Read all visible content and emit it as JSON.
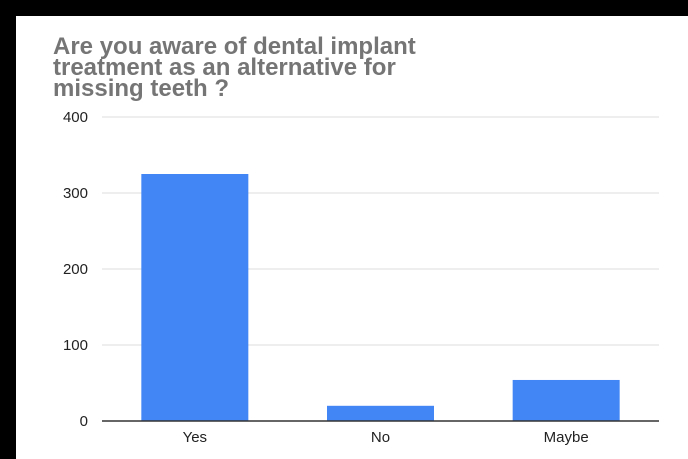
{
  "chart_data": {
    "type": "bar",
    "title": "Are you aware of dental implant treatment as  an alternative for missing teeth ?",
    "categories": [
      "Yes",
      "No",
      "Maybe"
    ],
    "values": [
      325,
      20,
      54
    ],
    "ylim": [
      0,
      400
    ],
    "yticks": [
      "0",
      "100",
      "200",
      "300",
      "400"
    ],
    "xlabel": "",
    "ylabel": "",
    "grid": true,
    "bar_color": "#4285f4",
    "axis_color": "#333333",
    "grid_color": "#dddddd"
  }
}
